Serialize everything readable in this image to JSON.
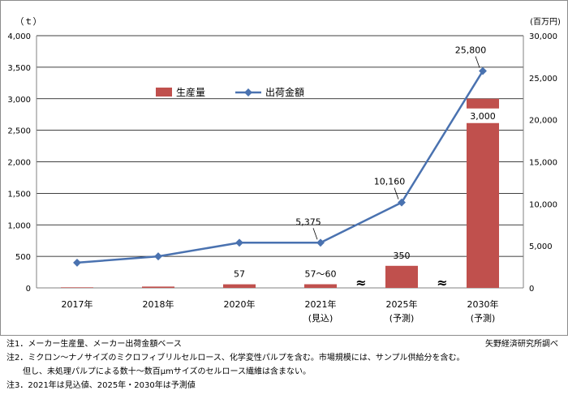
{
  "chart_data": {
    "type": "bar+line",
    "categories": [
      "2017年",
      "2018年",
      "2020年",
      "2021年",
      "2025年",
      "2030年"
    ],
    "category_sublabels": [
      "",
      "",
      "",
      "(見込)",
      "(予測)",
      "(予測)"
    ],
    "left_axis": {
      "unit_label": "（ｔ）",
      "ylim": [
        0,
        4000
      ],
      "ticks": [
        "0",
        "500",
        "1,000",
        "1,500",
        "2,000",
        "2,500",
        "3,000",
        "3,500",
        "4,000"
      ]
    },
    "right_axis": {
      "unit_label": "(百万円)",
      "ylim": [
        0,
        30000
      ],
      "ticks": [
        "0",
        "5,000",
        "10,000",
        "15,000",
        "20,000",
        "25,000",
        "30,000"
      ]
    },
    "series": [
      {
        "name": "生産量",
        "kind": "bar",
        "axis": "left",
        "color": "#c0504d",
        "values": [
          9,
          21,
          57,
          58,
          350,
          3000
        ],
        "labels": [
          "",
          "",
          "57",
          "57～60",
          "350",
          "3,000"
        ]
      },
      {
        "name": "出荷金額",
        "kind": "line",
        "axis": "right",
        "color": "#4a72b0",
        "values": [
          3000,
          3750,
          5375,
          5375,
          10160,
          25800
        ],
        "labels": [
          "",
          "",
          "",
          "5,375",
          "10,160",
          "25,800"
        ]
      }
    ],
    "break_marks": [
      "≈",
      "≈"
    ],
    "grid": true,
    "legend_position": "top-center"
  },
  "notes": [
    "注1．メーカー生産量、メーカー出荷金額ベース",
    "注2．ミクロン～ナノサイズのミクロフィブリルセルロース、化学変性パルプを含む。市場規模には、サンプル供給分を含む。",
    "　　但し、未処理パルプによる数十～数百μmサイズのセルロース繊維は含まない。",
    "注3．2021年は見込値、2025年・2030年は予測値"
  ],
  "source": "矢野経済研究所調べ"
}
